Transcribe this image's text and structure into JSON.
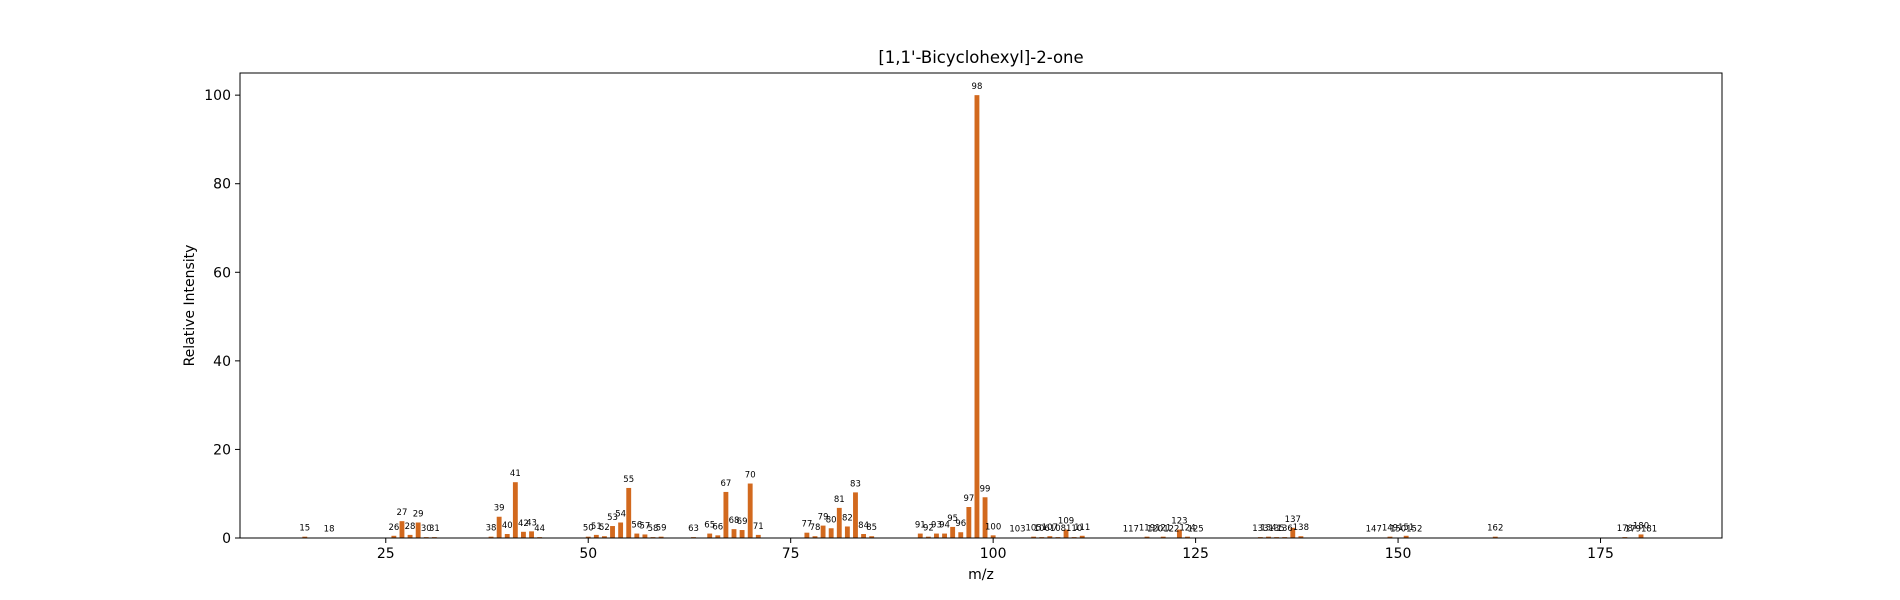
{
  "chart_data": {
    "type": "bar",
    "title": "[1,1'-Bicyclohexyl]-2-one",
    "xlabel": "m/z",
    "ylabel": "Relative Intensity",
    "xlim": [
      7,
      190
    ],
    "ylim": [
      0,
      105
    ],
    "x_ticks": [
      25,
      50,
      75,
      100,
      125,
      150,
      175
    ],
    "y_ticks": [
      0,
      20,
      40,
      60,
      80,
      100
    ],
    "grid": false,
    "legend": "none",
    "color": "#d2691e",
    "peaks": [
      {
        "mz": 15,
        "intensity": 0.3
      },
      {
        "mz": 18,
        "intensity": 0.1
      },
      {
        "mz": 26,
        "intensity": 0.5
      },
      {
        "mz": 27,
        "intensity": 3.8
      },
      {
        "mz": 28,
        "intensity": 0.7
      },
      {
        "mz": 29,
        "intensity": 3.5
      },
      {
        "mz": 30,
        "intensity": 0.2
      },
      {
        "mz": 31,
        "intensity": 0.2
      },
      {
        "mz": 38,
        "intensity": 0.3
      },
      {
        "mz": 39,
        "intensity": 4.8
      },
      {
        "mz": 40,
        "intensity": 0.9
      },
      {
        "mz": 41,
        "intensity": 12.6
      },
      {
        "mz": 42,
        "intensity": 1.4
      },
      {
        "mz": 43,
        "intensity": 1.5
      },
      {
        "mz": 44,
        "intensity": 0.2
      },
      {
        "mz": 50,
        "intensity": 0.3
      },
      {
        "mz": 51,
        "intensity": 0.7
      },
      {
        "mz": 52,
        "intensity": 0.4
      },
      {
        "mz": 53,
        "intensity": 2.7
      },
      {
        "mz": 54,
        "intensity": 3.5
      },
      {
        "mz": 55,
        "intensity": 11.3
      },
      {
        "mz": 56,
        "intensity": 1.0
      },
      {
        "mz": 57,
        "intensity": 0.8
      },
      {
        "mz": 58,
        "intensity": 0.2
      },
      {
        "mz": 59,
        "intensity": 0.3
      },
      {
        "mz": 63,
        "intensity": 0.2
      },
      {
        "mz": 65,
        "intensity": 1.0
      },
      {
        "mz": 66,
        "intensity": 0.6
      },
      {
        "mz": 67,
        "intensity": 10.4
      },
      {
        "mz": 68,
        "intensity": 2.0
      },
      {
        "mz": 69,
        "intensity": 1.8
      },
      {
        "mz": 70,
        "intensity": 12.3
      },
      {
        "mz": 71,
        "intensity": 0.7
      },
      {
        "mz": 77,
        "intensity": 1.2
      },
      {
        "mz": 78,
        "intensity": 0.4
      },
      {
        "mz": 79,
        "intensity": 2.8
      },
      {
        "mz": 80,
        "intensity": 2.2
      },
      {
        "mz": 81,
        "intensity": 6.8
      },
      {
        "mz": 82,
        "intensity": 2.6
      },
      {
        "mz": 83,
        "intensity": 10.3
      },
      {
        "mz": 84,
        "intensity": 0.9
      },
      {
        "mz": 85,
        "intensity": 0.4
      },
      {
        "mz": 91,
        "intensity": 1.0
      },
      {
        "mz": 92,
        "intensity": 0.3
      },
      {
        "mz": 93,
        "intensity": 1.0
      },
      {
        "mz": 94,
        "intensity": 1.0
      },
      {
        "mz": 95,
        "intensity": 2.5
      },
      {
        "mz": 96,
        "intensity": 1.3
      },
      {
        "mz": 97,
        "intensity": 7.0
      },
      {
        "mz": 98,
        "intensity": 100.0
      },
      {
        "mz": 99,
        "intensity": 9.2
      },
      {
        "mz": 100,
        "intensity": 0.6
      },
      {
        "mz": 103,
        "intensity": 0.1
      },
      {
        "mz": 105,
        "intensity": 0.3
      },
      {
        "mz": 106,
        "intensity": 0.2
      },
      {
        "mz": 107,
        "intensity": 0.4
      },
      {
        "mz": 108,
        "intensity": 0.2
      },
      {
        "mz": 109,
        "intensity": 1.9
      },
      {
        "mz": 110,
        "intensity": 0.2
      },
      {
        "mz": 111,
        "intensity": 0.5
      },
      {
        "mz": 117,
        "intensity": 0.1
      },
      {
        "mz": 119,
        "intensity": 0.3
      },
      {
        "mz": 120,
        "intensity": 0.1
      },
      {
        "mz": 121,
        "intensity": 0.3
      },
      {
        "mz": 122,
        "intensity": 0.1
      },
      {
        "mz": 123,
        "intensity": 1.9
      },
      {
        "mz": 124,
        "intensity": 0.3
      },
      {
        "mz": 125,
        "intensity": 0.1
      },
      {
        "mz": 133,
        "intensity": 0.2
      },
      {
        "mz": 134,
        "intensity": 0.3
      },
      {
        "mz": 135,
        "intensity": 0.2
      },
      {
        "mz": 136,
        "intensity": 0.2
      },
      {
        "mz": 137,
        "intensity": 2.3
      },
      {
        "mz": 138,
        "intensity": 0.4
      },
      {
        "mz": 147,
        "intensity": 0.1
      },
      {
        "mz": 149,
        "intensity": 0.3
      },
      {
        "mz": 150,
        "intensity": 0.1
      },
      {
        "mz": 151,
        "intensity": 0.5
      },
      {
        "mz": 152,
        "intensity": 0.1
      },
      {
        "mz": 162,
        "intensity": 0.3
      },
      {
        "mz": 178,
        "intensity": 0.2
      },
      {
        "mz": 179,
        "intensity": 0.1
      },
      {
        "mz": 180,
        "intensity": 0.8
      },
      {
        "mz": 181,
        "intensity": 0.1
      }
    ]
  }
}
